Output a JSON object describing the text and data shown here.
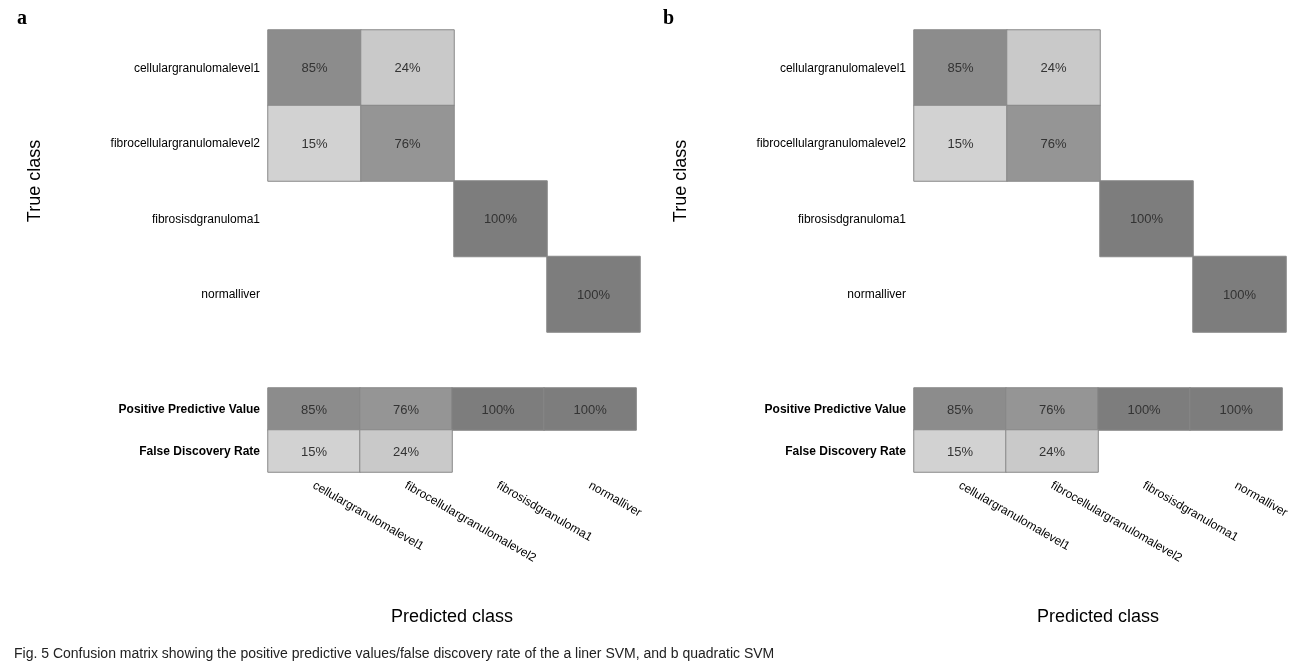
{
  "chart_data": [
    {
      "type": "heatmap",
      "title": "a",
      "xlabel": "Predicted class",
      "ylabel": "True class",
      "categories": [
        "cellulargranulomalevel1",
        "fibrocellulargranulomalevel2",
        "fibrosisdgranuloma1",
        "normalliver"
      ],
      "y_categories": [
        "cellulargranulomalevel1",
        "fibrocellulargranulomalevel2",
        "fibrosisdgranuloma1",
        "normalliver",
        "Positive Predictive Value",
        "False Discovery Rate"
      ],
      "cells": [
        [
          85,
          24,
          null,
          null
        ],
        [
          15,
          76,
          null,
          null
        ],
        [
          null,
          null,
          100,
          null
        ],
        [
          null,
          null,
          null,
          100
        ],
        [
          85,
          76,
          100,
          100
        ],
        [
          15,
          24,
          null,
          null
        ]
      ],
      "cell_labels": [
        [
          "85%",
          "24%",
          null,
          null
        ],
        [
          "15%",
          "76%",
          null,
          null
        ],
        [
          null,
          null,
          "100%",
          null
        ],
        [
          null,
          null,
          null,
          "100%"
        ],
        [
          "85%",
          "76%",
          "100%",
          "100%"
        ],
        [
          "15%",
          "24%",
          null,
          null
        ]
      ],
      "annotations": [
        "Fig. 5  Confusion matrix showing the positive predictive values/false discovery rate of the a liner SVM, and b quadratic SVM"
      ]
    },
    {
      "type": "heatmap",
      "title": "b",
      "xlabel": "Predicted class",
      "ylabel": "True class",
      "categories": [
        "cellulargranulomalevel1",
        "fibrocellulargranulomalevel2",
        "fibrosisdgranuloma1",
        "normalliver"
      ],
      "y_categories": [
        "cellulargranulomalevel1",
        "fibrocellulargranulomalevel2",
        "fibrosisdgranuloma1",
        "normalliver",
        "Positive Predictive Value",
        "False Discovery Rate"
      ],
      "cells": [
        [
          85,
          24,
          null,
          null
        ],
        [
          15,
          76,
          null,
          null
        ],
        [
          null,
          null,
          100,
          null
        ],
        [
          null,
          null,
          null,
          100
        ],
        [
          85,
          76,
          100,
          100
        ],
        [
          15,
          24,
          null,
          null
        ]
      ],
      "cell_labels": [
        [
          "85%",
          "24%",
          null,
          null
        ],
        [
          "15%",
          "76%",
          null,
          null
        ],
        [
          null,
          null,
          "100%",
          null
        ],
        [
          null,
          null,
          null,
          "100%"
        ],
        [
          "85%",
          "76%",
          "100%",
          "100%"
        ],
        [
          "15%",
          "24%",
          null,
          null
        ]
      ]
    }
  ]
}
